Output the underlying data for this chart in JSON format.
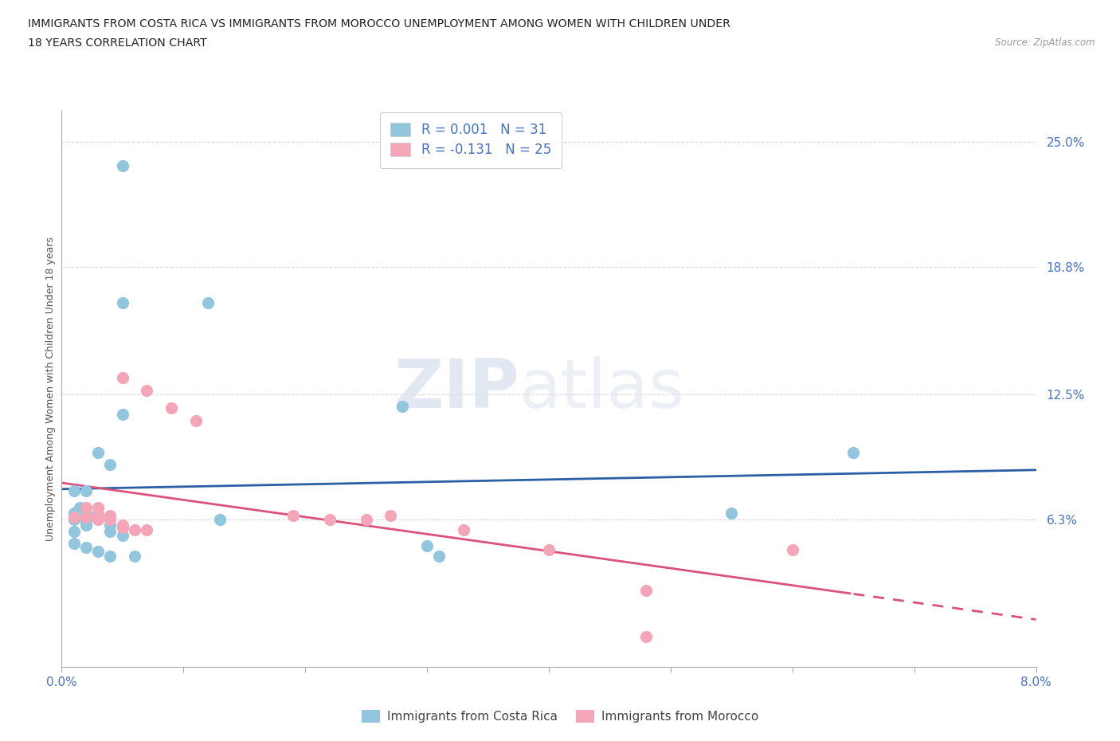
{
  "title_line1": "IMMIGRANTS FROM COSTA RICA VS IMMIGRANTS FROM MOROCCO UNEMPLOYMENT AMONG WOMEN WITH CHILDREN UNDER",
  "title_line2": "18 YEARS CORRELATION CHART",
  "source": "Source: ZipAtlas.com",
  "ylabel": "Unemployment Among Women with Children Under 18 years",
  "xlim": [
    0.0,
    0.08
  ],
  "ylim": [
    -0.01,
    0.265
  ],
  "yticks": [
    0.063,
    0.125,
    0.188,
    0.25
  ],
  "ytick_labels": [
    "6.3%",
    "12.5%",
    "18.8%",
    "25.0%"
  ],
  "xticks": [
    0.0,
    0.01,
    0.02,
    0.03,
    0.04,
    0.05,
    0.06,
    0.07,
    0.08
  ],
  "xtick_labels": [
    "0.0%",
    "",
    "",
    "",
    "",
    "",
    "",
    "",
    "8.0%"
  ],
  "costa_rica_color": "#92c5de",
  "morocco_color": "#f4a6b8",
  "costa_rica_trend_color": "#2b5fa5",
  "morocco_trend_color": "#d9537a",
  "costa_rica_label": "Immigrants from Costa Rica",
  "morocco_label": "Immigrants from Morocco",
  "R_costa_rica": "0.001",
  "N_costa_rica": "31",
  "R_morocco": "-0.131",
  "N_morocco": "25",
  "watermark_zip": "ZIP",
  "watermark_atlas": "atlas",
  "legend_color": "#4472c4",
  "grid_color": "#d9d9d9",
  "costa_rica_points": [
    [
      0.005,
      0.238
    ],
    [
      0.005,
      0.17
    ],
    [
      0.012,
      0.17
    ],
    [
      0.005,
      0.115
    ],
    [
      0.003,
      0.096
    ],
    [
      0.004,
      0.09
    ],
    [
      0.001,
      0.077
    ],
    [
      0.002,
      0.077
    ],
    [
      0.0015,
      0.069
    ],
    [
      0.001,
      0.066
    ],
    [
      0.002,
      0.066
    ],
    [
      0.003,
      0.066
    ],
    [
      0.003,
      0.064
    ],
    [
      0.001,
      0.063
    ],
    [
      0.002,
      0.062
    ],
    [
      0.002,
      0.06
    ],
    [
      0.004,
      0.06
    ],
    [
      0.001,
      0.057
    ],
    [
      0.004,
      0.057
    ],
    [
      0.005,
      0.055
    ],
    [
      0.001,
      0.051
    ],
    [
      0.002,
      0.049
    ],
    [
      0.003,
      0.047
    ],
    [
      0.004,
      0.045
    ],
    [
      0.006,
      0.045
    ],
    [
      0.013,
      0.063
    ],
    [
      0.028,
      0.119
    ],
    [
      0.03,
      0.05
    ],
    [
      0.031,
      0.045
    ],
    [
      0.055,
      0.066
    ],
    [
      0.065,
      0.096
    ]
  ],
  "morocco_points": [
    [
      0.005,
      0.133
    ],
    [
      0.007,
      0.127
    ],
    [
      0.009,
      0.118
    ],
    [
      0.011,
      0.112
    ],
    [
      0.002,
      0.069
    ],
    [
      0.003,
      0.069
    ],
    [
      0.003,
      0.065
    ],
    [
      0.004,
      0.065
    ],
    [
      0.001,
      0.064
    ],
    [
      0.002,
      0.064
    ],
    [
      0.003,
      0.063
    ],
    [
      0.004,
      0.063
    ],
    [
      0.005,
      0.06
    ],
    [
      0.005,
      0.059
    ],
    [
      0.006,
      0.058
    ],
    [
      0.007,
      0.058
    ],
    [
      0.019,
      0.065
    ],
    [
      0.022,
      0.063
    ],
    [
      0.025,
      0.063
    ],
    [
      0.027,
      0.065
    ],
    [
      0.033,
      0.058
    ],
    [
      0.04,
      0.048
    ],
    [
      0.06,
      0.048
    ],
    [
      0.048,
      0.028
    ],
    [
      0.048,
      0.005
    ]
  ]
}
